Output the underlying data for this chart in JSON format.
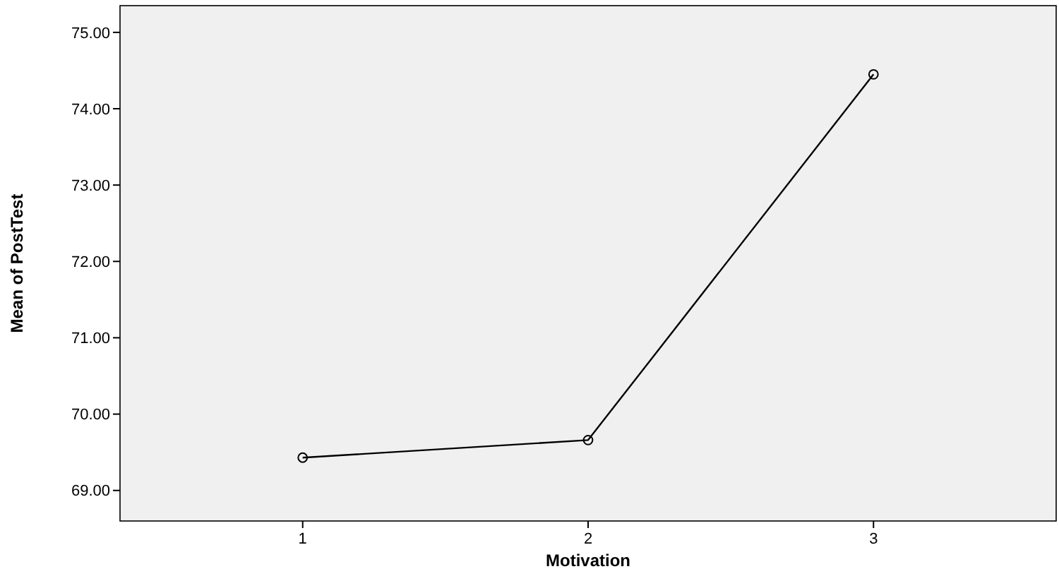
{
  "chart_data": {
    "type": "line",
    "xlabel": "Motivation",
    "ylabel": "Mean of PostTest",
    "categories": [
      "1",
      "2",
      "3"
    ],
    "series": [
      {
        "color": "#000000",
        "values": [
          69.43,
          69.66,
          74.45
        ]
      }
    ],
    "ylim": [
      68.6,
      75.35
    ],
    "yticks": [
      {
        "value": 69,
        "label": "69.00"
      },
      {
        "value": 70,
        "label": "70.00"
      },
      {
        "value": 71,
        "label": "71.00"
      },
      {
        "value": 72,
        "label": "72.00"
      },
      {
        "value": 73,
        "label": "73.00"
      },
      {
        "value": 74,
        "label": "74.00"
      },
      {
        "value": 75,
        "label": "75.00"
      }
    ],
    "marker": "circle",
    "line_style": "solid"
  }
}
